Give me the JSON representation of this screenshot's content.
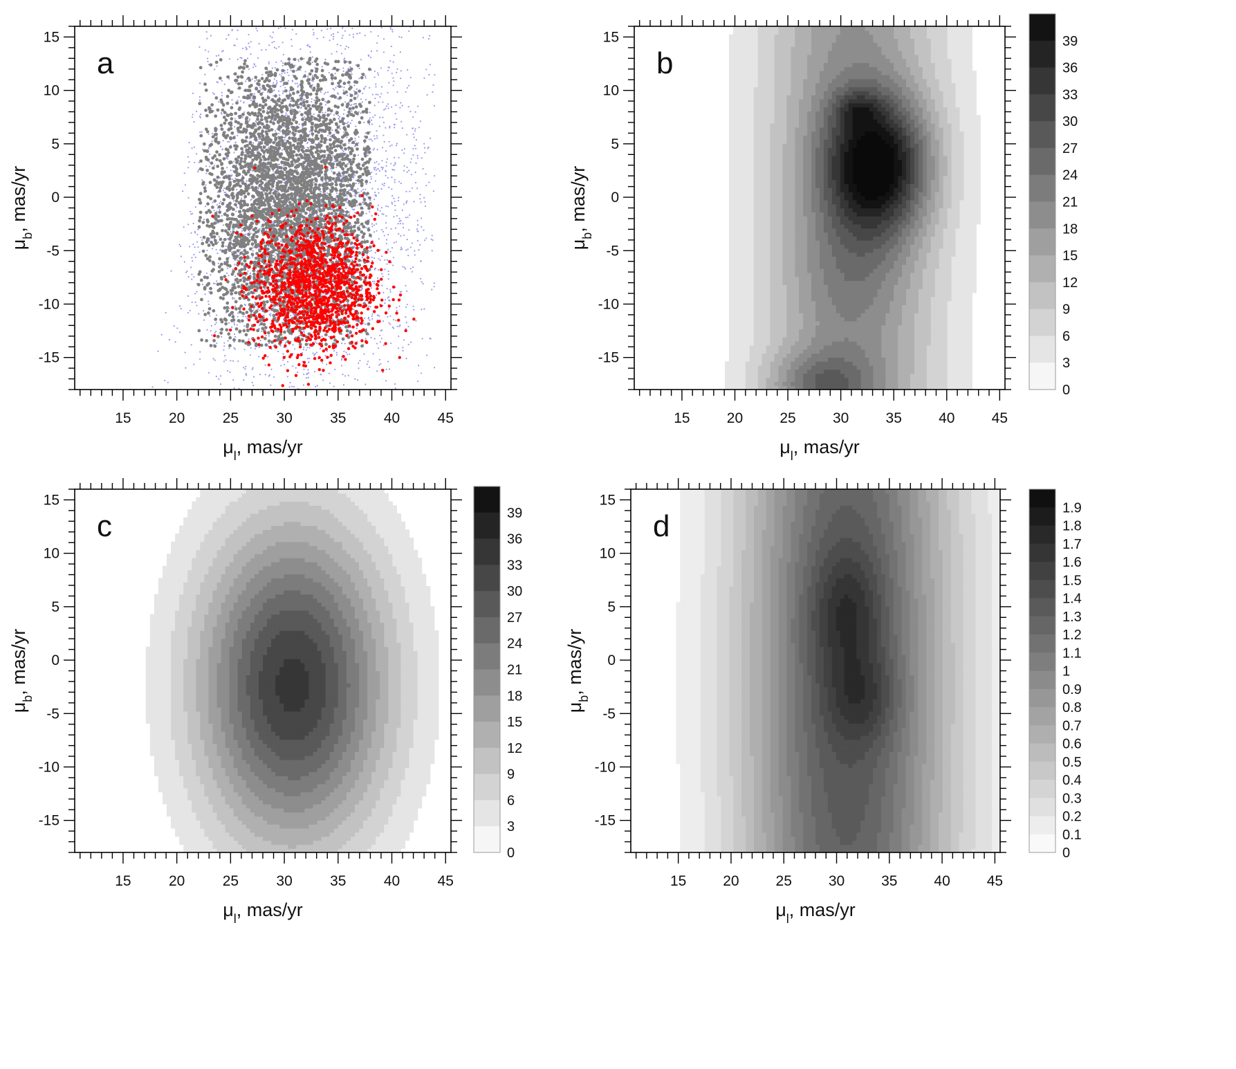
{
  "figure": {
    "panels": [
      "a",
      "b",
      "c",
      "d"
    ]
  },
  "chart_data": [
    {
      "panel": "a",
      "type": "scatter",
      "title": "",
      "panel_label": "a",
      "xlabel_main": "μ",
      "xlabel_sub": "l",
      "xlabel_unit": ", mas/yr",
      "ylabel_main": "μ",
      "ylabel_sub": "b",
      "ylabel_unit": ", mas/yr",
      "xlim": [
        10.5,
        45.5
      ],
      "ylim": [
        -18,
        16
      ],
      "xticks": [
        "15",
        "20",
        "25",
        "30",
        "35",
        "40",
        "45"
      ],
      "xtick_values": [
        15,
        20,
        25,
        30,
        35,
        40,
        45
      ],
      "yticks": [
        "15",
        "10",
        "5",
        "0",
        "-5",
        "-10",
        "-15"
      ],
      "ytick_values": [
        15,
        10,
        5,
        0,
        -5,
        -10,
        -15
      ],
      "grid": false,
      "series": [
        {
          "color": "#9999ee",
          "distribution": {
            "center": [
              32,
              -1
            ],
            "spread": [
              6,
              9.5
            ],
            "count": 3200,
            "xmin_at_top": 22,
            "xmin_at_bottom": 16,
            "xmax": 44
          }
        },
        {
          "color": "#808080",
          "distribution": {
            "center": [
              30.5,
              -1
            ],
            "spread": [
              4.2,
              7
            ],
            "count": 3800,
            "xrange": [
              22,
              38
            ],
            "yrange": [
              -14,
              13
            ]
          }
        },
        {
          "color": "#ff0000",
          "distribution": {
            "center": [
              32.8,
              -8.3
            ],
            "spread": [
              2.8,
              3.1
            ],
            "count": 1400
          }
        }
      ]
    },
    {
      "panel": "b",
      "type": "heatmap",
      "title": "",
      "panel_label": "b",
      "xlabel_main": "μ",
      "xlabel_sub": "l",
      "xlabel_unit": ", mas/yr",
      "ylabel_main": "μ",
      "ylabel_sub": "b",
      "ylabel_unit": ", mas/yr",
      "xlim": [
        10.5,
        45.5
      ],
      "ylim": [
        -18,
        16
      ],
      "xticks": [
        "15",
        "20",
        "25",
        "30",
        "35",
        "40",
        "45"
      ],
      "xtick_values": [
        15,
        20,
        25,
        30,
        35,
        40,
        45
      ],
      "yticks": [
        "15",
        "10",
        "5",
        "0",
        "-5",
        "-10",
        "-15"
      ],
      "ytick_values": [
        15,
        10,
        5,
        0,
        -5,
        -10,
        -15
      ],
      "colorbar_levels": [
        "39",
        "36",
        "33",
        "30",
        "27",
        "24",
        "21",
        "18",
        "15",
        "12",
        "9",
        "6",
        "3",
        "0"
      ],
      "colorbar_range": [
        0,
        42
      ],
      "colorbar_step": 3,
      "peaks": [
        {
          "center": [
            33.5,
            3
          ],
          "spread": [
            3.5,
            4.5
          ],
          "height": 30
        },
        {
          "center": [
            31.5,
            8.3
          ],
          "spread": [
            1.5,
            1.2
          ],
          "height": 8
        },
        {
          "center": [
            28,
            -17.5
          ],
          "spread": [
            3.5,
            2.2
          ],
          "height": 12
        },
        {
          "center": [
            31,
            -7
          ],
          "spread": [
            4,
            4
          ],
          "height": 4
        }
      ],
      "ridge": {
        "center": [
          31,
          -1
        ],
        "spread": [
          6,
          50
        ],
        "height": 19
      },
      "grid": false
    },
    {
      "panel": "c",
      "type": "heatmap",
      "title": "",
      "panel_label": "c",
      "xlabel_main": "μ",
      "xlabel_sub": "l",
      "xlabel_unit": ", mas/yr",
      "ylabel_main": "μ",
      "ylabel_sub": "b",
      "ylabel_unit": ", mas/yr",
      "xlim": [
        10.5,
        45.5
      ],
      "ylim": [
        -18,
        16
      ],
      "xticks": [
        "15",
        "20",
        "25",
        "30",
        "35",
        "40",
        "45"
      ],
      "xtick_values": [
        15,
        20,
        25,
        30,
        35,
        40,
        45
      ],
      "yticks": [
        "15",
        "10",
        "5",
        "0",
        "-5",
        "-10",
        "-15"
      ],
      "ytick_values": [
        15,
        10,
        5,
        0,
        -5,
        -10,
        -15
      ],
      "colorbar_levels": [
        "39",
        "36",
        "33",
        "30",
        "27",
        "24",
        "21",
        "18",
        "15",
        "12",
        "9",
        "6",
        "3",
        "0"
      ],
      "colorbar_range": [
        0,
        42
      ],
      "colorbar_step": 3,
      "peaks": [
        {
          "center": [
            30.8,
            -2.3
          ],
          "spread": [
            6.2,
            10.5
          ],
          "height": 34
        }
      ],
      "grid": false
    },
    {
      "panel": "d",
      "type": "heatmap",
      "title": "",
      "panel_label": "d",
      "xlabel_main": "μ",
      "xlabel_sub": "l",
      "xlabel_unit": ", mas/yr",
      "ylabel_main": "μ",
      "ylabel_sub": "b",
      "ylabel_unit": ", mas/yr",
      "xlim": [
        10.5,
        45.5
      ],
      "ylim": [
        -18,
        16
      ],
      "xticks": [
        "15",
        "20",
        "25",
        "30",
        "35",
        "40",
        "45"
      ],
      "xtick_values": [
        15,
        20,
        25,
        30,
        35,
        40,
        45
      ],
      "yticks": [
        "15",
        "10",
        "5",
        "0",
        "-5",
        "-10",
        "-15"
      ],
      "ytick_values": [
        15,
        10,
        5,
        0,
        -5,
        -10,
        -15
      ],
      "colorbar_levels": [
        "1.9",
        "1.8",
        "1.7",
        "1.6",
        "1.5",
        "1.4",
        "1.3",
        "1.2",
        "1.1",
        "1",
        "0.9",
        "0.8",
        "0.7",
        "0.6",
        "0.5",
        "0.4",
        "0.3",
        "0.2",
        "0.1",
        "0"
      ],
      "colorbar_range": [
        0,
        2
      ],
      "colorbar_step": 0.1,
      "peaks": [
        {
          "center": [
            31,
            4.5
          ],
          "spread": [
            2.5,
            4
          ],
          "height": 0.35
        },
        {
          "center": [
            32.5,
            -3.5
          ],
          "spread": [
            2.5,
            3
          ],
          "height": 0.3
        }
      ],
      "ridge": {
        "center": [
          31,
          -2
        ],
        "spread": [
          7,
          40
        ],
        "height": 1.4
      },
      "grid": false
    }
  ]
}
